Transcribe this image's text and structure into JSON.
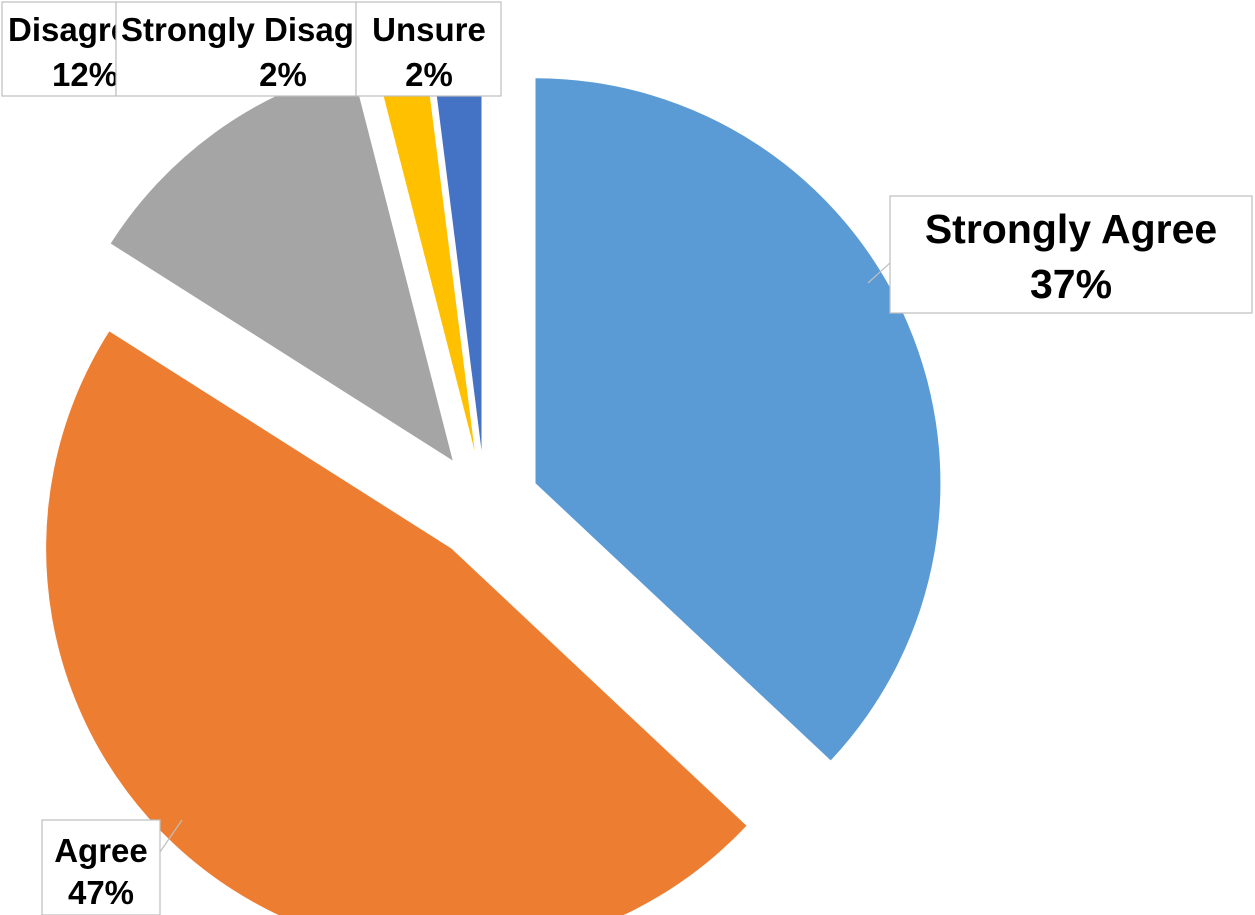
{
  "chart_data": {
    "type": "pie",
    "title": "",
    "legend": "none",
    "slices": [
      {
        "label": "Strongly Agree",
        "value": 37,
        "value_label": "37%",
        "color": "#5b9bd5"
      },
      {
        "label": "Agree",
        "value": 47,
        "value_label": "47%",
        "color": "#ed7d31"
      },
      {
        "label": "Disagree",
        "value": 12,
        "value_label": "12%",
        "color": "#a5a5a5"
      },
      {
        "label": "Strongly Disagree",
        "value": 2,
        "value_label": "2%",
        "color": "#ffc000"
      },
      {
        "label": "Unsure",
        "value": 2,
        "value_label": "2%",
        "color": "#4472c4"
      }
    ]
  }
}
